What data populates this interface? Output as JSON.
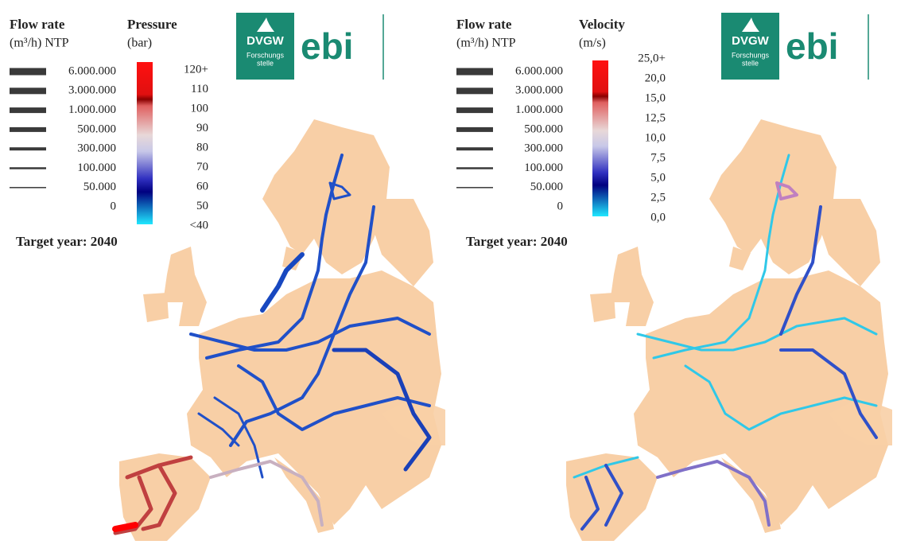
{
  "panels": [
    {
      "flow_title": "Flow rate",
      "flow_unit": "(m³/h) NTP",
      "flow_levels": [
        "6.000.000",
        "3.000.000",
        "1.000.000",
        "500.000",
        "300.000",
        "100.000",
        "50.000",
        "0"
      ],
      "scale_title": "Pressure",
      "scale_unit": "(bar)",
      "scale_labels": [
        "120+",
        "110",
        "100",
        "90",
        "80",
        "70",
        "60",
        "50",
        "<40"
      ],
      "logo": {
        "mark": "DVGW",
        "sub": "Forschungs",
        "sub2": "stelle",
        "brand": "ebi"
      },
      "target": "Target year: 2040"
    },
    {
      "flow_title": "Flow rate",
      "flow_unit": "(m³/h) NTP",
      "flow_levels": [
        "6.000.000",
        "3.000.000",
        "1.000.000",
        "500.000",
        "300.000",
        "100.000",
        "50.000",
        "0"
      ],
      "scale_title": "Velocity",
      "scale_unit": "(m/s)",
      "scale_labels": [
        "25,0+",
        "20,0",
        "15,0",
        "12,5",
        "10,0",
        "7,5",
        "5,0",
        "2,5",
        "0,0"
      ],
      "logo": {
        "mark": "DVGW",
        "sub": "Forschungs",
        "sub2": "stelle",
        "brand": "ebi"
      },
      "target": "Target year: 2040"
    }
  ]
}
